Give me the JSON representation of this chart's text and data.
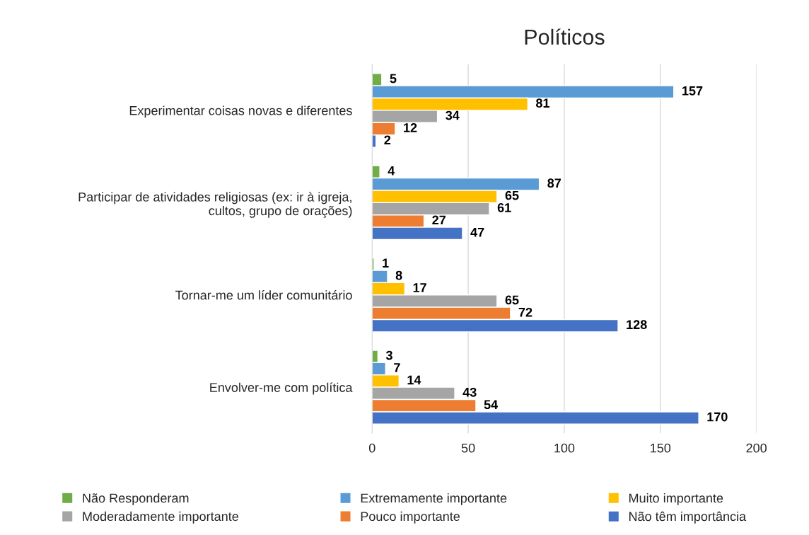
{
  "chart_data": {
    "type": "bar",
    "orientation": "horizontal",
    "title": "Políticos",
    "categories": [
      "Experimentar coisas novas e diferentes",
      "Participar de atividades religiosas (ex: ir à igreja,\ncultos, grupo de orações)",
      "Tornar-me um líder comunitário",
      "Envolver-me com política"
    ],
    "series": [
      {
        "name": "Não Responderam",
        "color": "#70ad47",
        "values": [
          5,
          4,
          1,
          3
        ]
      },
      {
        "name": "Extremamente importante",
        "color": "#5b9bd5",
        "values": [
          157,
          87,
          8,
          7
        ]
      },
      {
        "name": "Muito importante",
        "color": "#ffc000",
        "values": [
          81,
          65,
          17,
          14
        ]
      },
      {
        "name": "Moderadamente importante",
        "color": "#a5a5a5",
        "values": [
          34,
          61,
          65,
          43
        ]
      },
      {
        "name": "Pouco importante",
        "color": "#ed7d31",
        "values": [
          12,
          27,
          72,
          54
        ]
      },
      {
        "name": "Não têm importância",
        "color": "#4472c4",
        "values": [
          2,
          47,
          128,
          170
        ]
      }
    ],
    "xlim": [
      0,
      200
    ],
    "xticks": [
      0,
      50,
      100,
      150,
      200
    ],
    "grid": "x",
    "legend": "bottom",
    "data_labels": true
  }
}
